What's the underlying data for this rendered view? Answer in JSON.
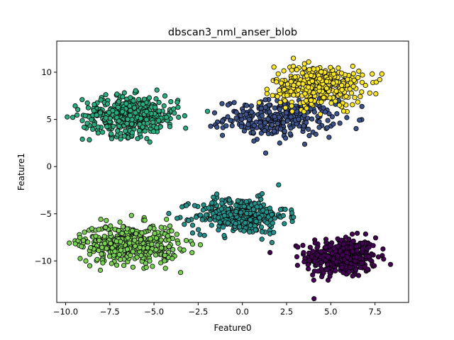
{
  "chart_data": {
    "type": "scatter",
    "title": "dbscan3_nml_anser_blob",
    "xlabel": "Feature0",
    "ylabel": "Feature1",
    "xlim": [
      -10.5,
      9.4
    ],
    "ylim": [
      -14.4,
      13.3
    ],
    "xticks": [
      -10.0,
      -7.5,
      -5.0,
      -2.5,
      0.0,
      2.5,
      5.0,
      7.5
    ],
    "xtick_labels": [
      "−10.0",
      "−7.5",
      "−5.0",
      "−2.5",
      "0.0",
      "2.5",
      "5.0",
      "7.5"
    ],
    "yticks": [
      -10,
      -5,
      0,
      5,
      10
    ],
    "ytick_labels": [
      "−10",
      "−5",
      "0",
      "5",
      "10"
    ],
    "grid": false,
    "legend": "none",
    "clusters": [
      {
        "center": [
          5.6,
          -9.6
        ],
        "spread": [
          1.0,
          1.05
        ],
        "n": 380,
        "color": "#440154"
      },
      {
        "center": [
          2.1,
          5.1
        ],
        "spread": [
          1.55,
          0.95
        ],
        "n": 300,
        "color": "#3b528b"
      },
      {
        "center": [
          -0.1,
          -5.2
        ],
        "spread": [
          1.3,
          0.95
        ],
        "n": 340,
        "color": "#21918c"
      },
      {
        "center": [
          -6.3,
          5.4
        ],
        "spread": [
          1.35,
          1.05
        ],
        "n": 420,
        "color": "#27ad81"
      },
      {
        "center": [
          -6.4,
          -8.2
        ],
        "spread": [
          1.4,
          1.05
        ],
        "n": 420,
        "color": "#7ad151"
      },
      {
        "center": [
          4.3,
          8.6
        ],
        "spread": [
          1.25,
          1.05
        ],
        "n": 380,
        "color": "#fde725"
      }
    ]
  }
}
